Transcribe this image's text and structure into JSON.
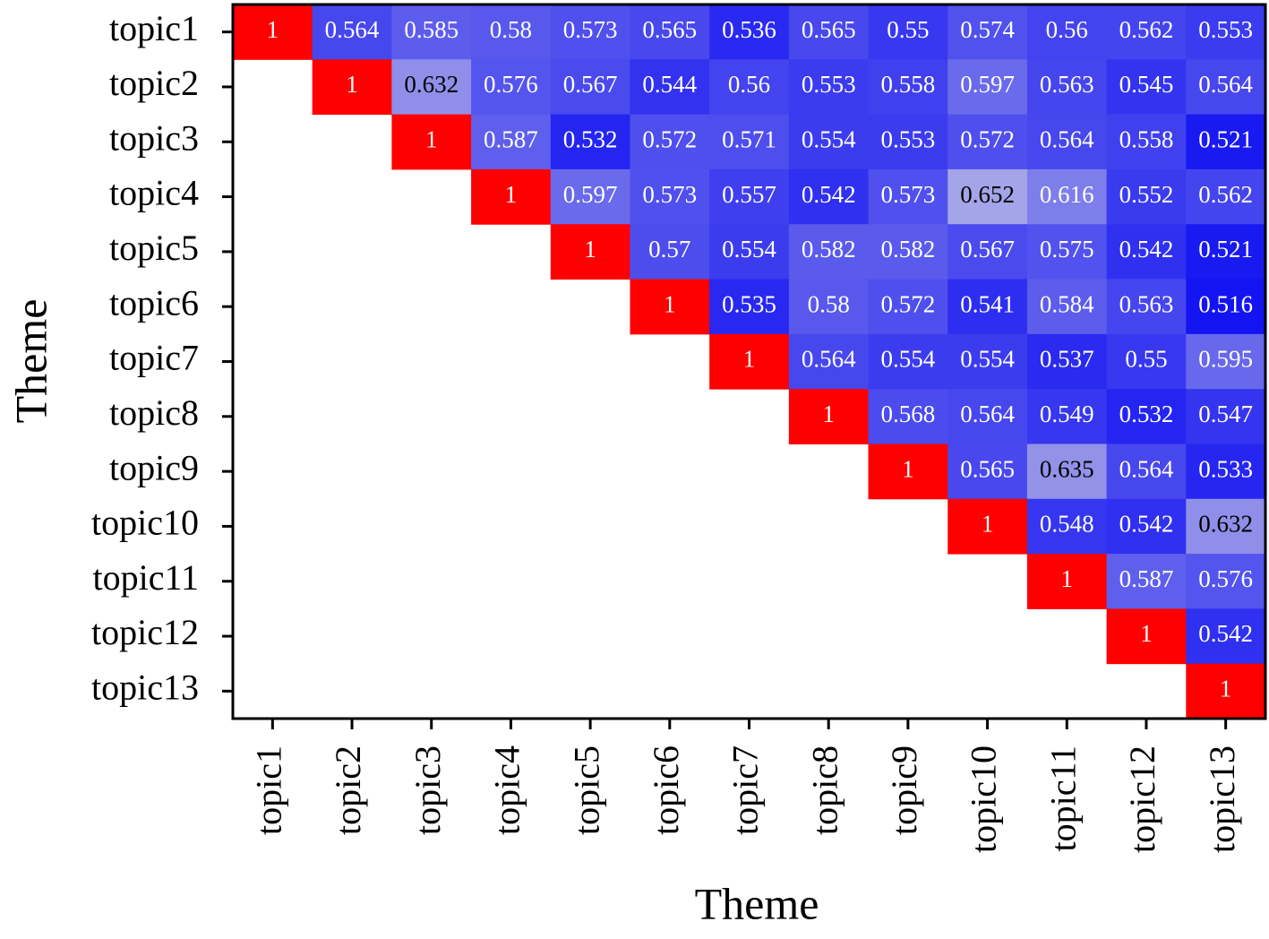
{
  "chart_data": {
    "type": "heatmap",
    "xlabel": "Theme",
    "ylabel": "Theme",
    "x_categories": [
      "topic1",
      "topic2",
      "topic3",
      "topic4",
      "topic5",
      "topic6",
      "topic7",
      "topic8",
      "topic9",
      "topic10",
      "topic11",
      "topic12",
      "topic13"
    ],
    "y_categories": [
      "topic1",
      "topic2",
      "topic3",
      "topic4",
      "topic5",
      "topic6",
      "topic7",
      "topic8",
      "topic9",
      "topic10",
      "topic11",
      "topic12",
      "topic13"
    ],
    "colors": [
      "#1414f2",
      "#a4a4e8",
      "#ff0000"
    ],
    "values": [
      [
        1,
        0.564,
        0.585,
        0.58,
        0.573,
        0.565,
        0.536,
        0.565,
        0.55,
        0.574,
        0.56,
        0.562,
        0.553
      ],
      [
        null,
        1,
        0.632,
        0.576,
        0.567,
        0.544,
        0.56,
        0.553,
        0.558,
        0.597,
        0.563,
        0.545,
        0.564
      ],
      [
        null,
        null,
        1,
        0.587,
        0.532,
        0.572,
        0.571,
        0.554,
        0.553,
        0.572,
        0.564,
        0.558,
        0.521
      ],
      [
        null,
        null,
        null,
        1,
        0.597,
        0.573,
        0.557,
        0.542,
        0.573,
        0.652,
        0.616,
        0.552,
        0.562
      ],
      [
        null,
        null,
        null,
        null,
        1,
        0.57,
        0.554,
        0.582,
        0.582,
        0.567,
        0.575,
        0.542,
        0.521
      ],
      [
        null,
        null,
        null,
        null,
        null,
        1,
        0.535,
        0.58,
        0.572,
        0.541,
        0.584,
        0.563,
        0.516
      ],
      [
        null,
        null,
        null,
        null,
        null,
        null,
        1,
        0.564,
        0.554,
        0.554,
        0.537,
        0.55,
        0.595
      ],
      [
        null,
        null,
        null,
        null,
        null,
        null,
        null,
        1,
        0.568,
        0.564,
        0.549,
        0.532,
        0.547
      ],
      [
        null,
        null,
        null,
        null,
        null,
        null,
        null,
        null,
        1,
        0.565,
        0.635,
        0.564,
        0.533
      ],
      [
        null,
        null,
        null,
        null,
        null,
        null,
        null,
        null,
        null,
        1,
        0.548,
        0.542,
        0.632
      ],
      [
        null,
        null,
        null,
        null,
        null,
        null,
        null,
        null,
        null,
        null,
        1,
        0.587,
        0.576
      ],
      [
        null,
        null,
        null,
        null,
        null,
        null,
        null,
        null,
        null,
        null,
        null,
        1,
        0.542
      ],
      [
        null,
        null,
        null,
        null,
        null,
        null,
        null,
        null,
        null,
        null,
        null,
        null,
        1
      ]
    ]
  }
}
